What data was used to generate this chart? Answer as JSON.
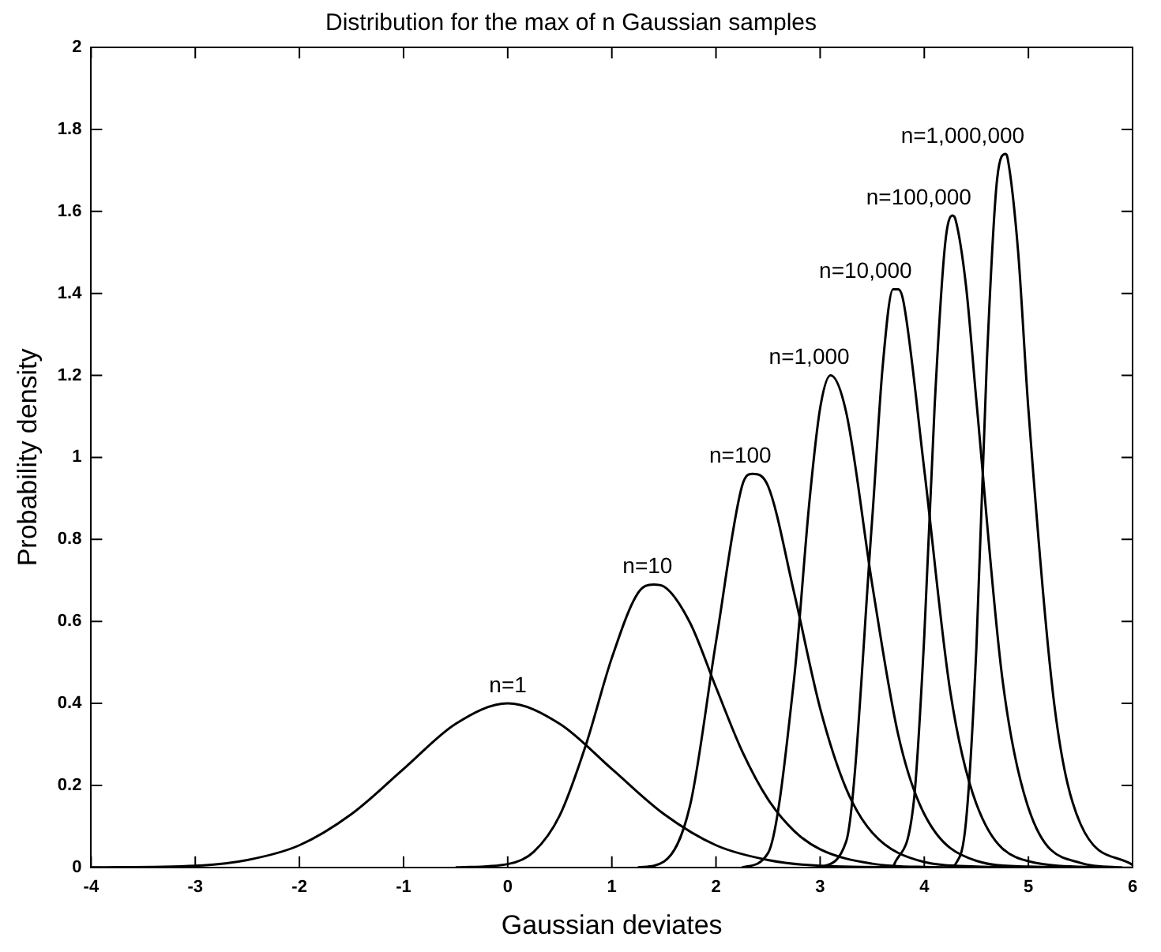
{
  "chart_data": {
    "type": "line",
    "title": "Distribution for the max of n Gaussian samples",
    "xlabel": "Gaussian deviates",
    "ylabel": "Probability density",
    "xlim": [
      -4,
      6
    ],
    "xticks": [
      -4,
      -3,
      -2,
      -1,
      0,
      1,
      2,
      3,
      4,
      5,
      6
    ],
    "ylim": [
      0,
      2
    ],
    "yticks": [
      0,
      0.2,
      0.4,
      0.6,
      0.8,
      1,
      1.2,
      1.4,
      1.6,
      1.8,
      2
    ],
    "grid": false,
    "legend": false,
    "marker": "none",
    "line_style": "solid",
    "series": [
      {
        "name": "n=1",
        "color": "#000000",
        "x": [
          -4,
          -3,
          -2.5,
          -2,
          -1.5,
          -1,
          -0.5,
          0,
          0.5,
          1,
          1.5,
          2,
          2.5,
          3,
          4
        ],
        "values": [
          0,
          0.004,
          0.018,
          0.054,
          0.13,
          0.24,
          0.35,
          0.4,
          0.35,
          0.24,
          0.13,
          0.054,
          0.018,
          0.004,
          0
        ]
      },
      {
        "name": "n=10",
        "color": "#000000",
        "x": [
          -0.5,
          0,
          0.25,
          0.5,
          0.75,
          1,
          1.25,
          1.4,
          1.5,
          1.75,
          2,
          2.25,
          2.5,
          2.75,
          3,
          3.5,
          4,
          4.5
        ],
        "values": [
          0,
          0.008,
          0.038,
          0.127,
          0.298,
          0.511,
          0.669,
          0.69,
          0.685,
          0.597,
          0.439,
          0.284,
          0.166,
          0.089,
          0.044,
          0.009,
          0.001,
          0
        ]
      },
      {
        "name": "n=100",
        "color": "#000000",
        "x": [
          1.25,
          1.5,
          1.75,
          2,
          2.25,
          2.35,
          2.5,
          2.75,
          3,
          3.25,
          3.5,
          4,
          4.5,
          5
        ],
        "values": [
          0,
          0.014,
          0.15,
          0.55,
          0.93,
          0.96,
          0.93,
          0.67,
          0.388,
          0.192,
          0.085,
          0.013,
          0.002,
          0
        ]
      },
      {
        "name": "n=1,000",
        "color": "#000000",
        "x": [
          2.25,
          2.5,
          2.75,
          2.9,
          3,
          3.1,
          3.25,
          3.5,
          3.75,
          4,
          4.5,
          5,
          5.5
        ],
        "values": [
          0,
          0.035,
          0.46,
          0.9,
          1.12,
          1.2,
          1.11,
          0.69,
          0.323,
          0.13,
          0.016,
          0.002,
          0
        ]
      },
      {
        "name": "n=10,000",
        "color": "#000000",
        "x": [
          3,
          3.25,
          3.5,
          3.6,
          3.7,
          3.75,
          3.8,
          4,
          4.25,
          4.5,
          5,
          5.7
        ],
        "values": [
          0,
          0.063,
          0.85,
          1.22,
          1.41,
          1.41,
          1.38,
          0.97,
          0.428,
          0.155,
          0.015,
          0
        ]
      },
      {
        "name": "n=100,000",
        "color": "#000000",
        "x": [
          3.7,
          3.9,
          4,
          4.1,
          4.2,
          4.27,
          4.3,
          4.4,
          4.5,
          4.75,
          5,
          5.5,
          5.9
        ],
        "values": [
          0,
          0.162,
          0.564,
          1.128,
          1.52,
          1.59,
          1.58,
          1.42,
          1.139,
          0.46,
          0.145,
          0.011,
          0
        ]
      },
      {
        "name": "n=1,000,000",
        "color": "#000000",
        "x": [
          4.25,
          4.3,
          4.4,
          4.5,
          4.6,
          4.7,
          4.78,
          4.8,
          4.9,
          5,
          5.25,
          5.5,
          6
        ],
        "values": [
          0,
          0.008,
          0.11,
          0.534,
          1.229,
          1.68,
          1.74,
          1.73,
          1.505,
          1.116,
          0.394,
          0.106,
          0.006
        ]
      }
    ]
  }
}
